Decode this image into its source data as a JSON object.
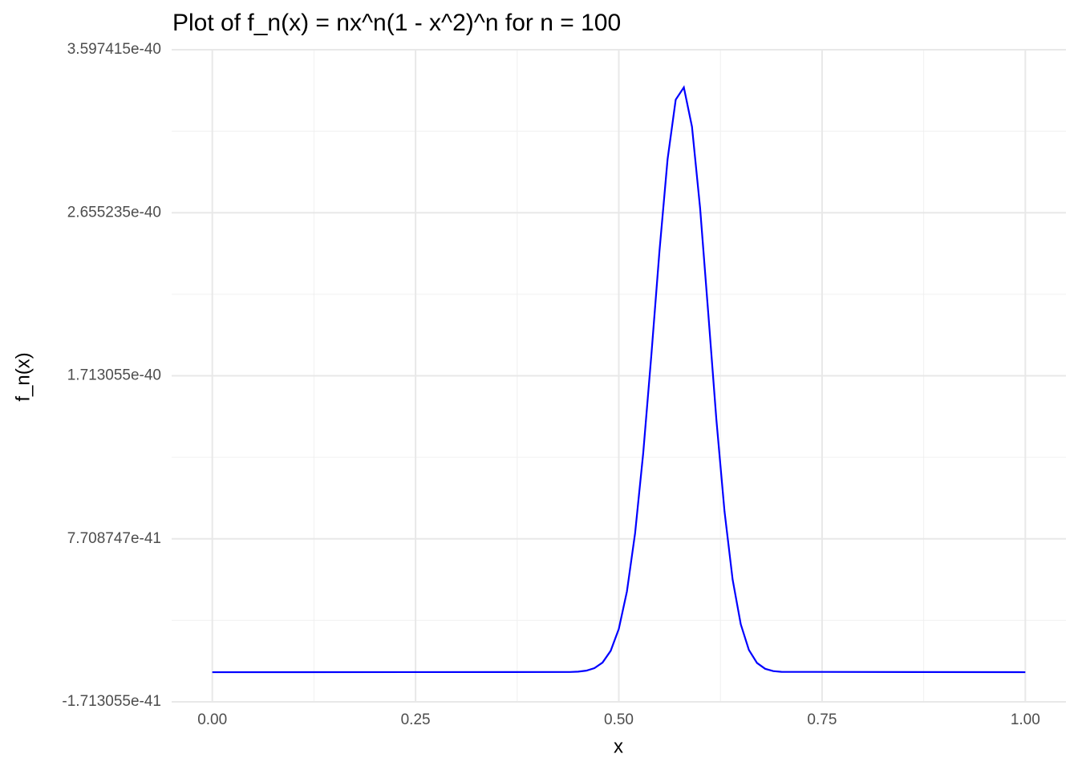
{
  "chart_data": {
    "type": "line",
    "title": "Plot of f_n(x) = nx^n(1 - x^2)^n for n = 100",
    "xlabel": "x",
    "ylabel": "f_n(x)",
    "x": [
      0,
      0.44,
      0.45,
      0.46,
      0.47,
      0.48,
      0.49,
      0.5,
      0.51,
      0.52,
      0.53,
      0.54,
      0.55,
      0.56,
      0.57,
      0.58,
      0.59,
      0.6,
      0.61,
      0.62,
      0.63,
      0.64,
      0.65,
      0.66,
      0.67,
      0.68,
      0.69,
      0.7,
      1
    ],
    "series": [
      {
        "name": "f_n(x)",
        "color": "#0000ff",
        "values": [
          0,
          1e-43,
          3.1e-43,
          8.8e-43,
          2.32e-42,
          5.57e-42,
          1.234e-41,
          2.5e-41,
          4.67e-41,
          8.02e-41,
          1.265e-40,
          1.831e-40,
          2.433e-40,
          2.965e-40,
          3.309e-40,
          3.38e-40,
          3.153e-40,
          2.682e-40,
          2.076e-40,
          1.46e-40,
          9.3e-41,
          5.35e-41,
          2.77e-41,
          1.285e-41,
          5.32e-42,
          1.96e-42,
          6.4e-43,
          1.8e-43,
          0
        ]
      }
    ],
    "xlim": [
      -0.05,
      1.05
    ],
    "xticks": [
      {
        "value": 0,
        "label": "0.00"
      },
      {
        "value": 0.25,
        "label": "0.25"
      },
      {
        "value": 0.5,
        "label": "0.50"
      },
      {
        "value": 0.75,
        "label": "0.75"
      },
      {
        "value": 1,
        "label": "1.00"
      }
    ],
    "ylim": [
      -1.713055e-41,
      3.597415e-40
    ],
    "yticks": [
      -1.713055e-41,
      7.708747e-41,
      1.713055e-40,
      2.655235e-40,
      3.597415e-40
    ],
    "grid": true
  }
}
